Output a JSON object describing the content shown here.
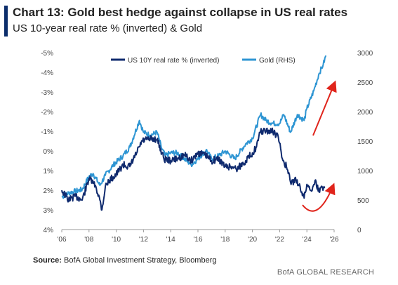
{
  "title": "Chart 13: Gold best hedge against collapse in US real rates",
  "subtitle": "US 10-year real rate % (inverted) & Gold",
  "source_label": "Source:",
  "source_text": " BofA Global Investment Strategy, Bloomberg",
  "footer": "BofA GLOBAL RESEARCH",
  "colors": {
    "accent_bar": "#0c2d6b",
    "real_rate": "#0f2a6e",
    "gold": "#2e95d3",
    "arrow": "#e0241b",
    "axis": "#999999"
  },
  "chart_data": {
    "type": "line",
    "title": "Chart 13: Gold best hedge against collapse in US real rates",
    "subtitle": "US 10-year real rate % (inverted) & Gold",
    "legend_position": "top-center",
    "grid": false,
    "x_ticks": [
      "'06",
      "'08",
      "'10",
      "'12",
      "'14",
      "'16",
      "'18",
      "'20",
      "'22",
      "'24",
      "'26"
    ],
    "y_left": {
      "label": "",
      "inverted": true,
      "range": [
        -5,
        4
      ],
      "ticks": [
        "-5%",
        "-4%",
        "-3%",
        "-2%",
        "-1%",
        "0%",
        "1%",
        "2%",
        "3%",
        "4%"
      ],
      "tick_values": [
        -5,
        -4,
        -3,
        -2,
        -1,
        0,
        1,
        2,
        3,
        4
      ]
    },
    "y_right": {
      "label": "",
      "range": [
        0,
        3000
      ],
      "ticks": [
        "3000",
        "2500",
        "2000",
        "1500",
        "1000",
        "500",
        "0"
      ],
      "tick_values": [
        3000,
        2500,
        2000,
        1500,
        1000,
        500,
        0
      ]
    },
    "series": [
      {
        "name": "US 10Y real rate % (inverted)",
        "axis": "left",
        "x": [
          2006.0,
          2006.5,
          2007.0,
          2007.5,
          2008.0,
          2008.5,
          2008.8,
          2008.95,
          2009.2,
          2009.5,
          2010.0,
          2010.5,
          2011.0,
          2011.5,
          2011.9,
          2012.5,
          2013.0,
          2013.5,
          2014.0,
          2014.5,
          2015.0,
          2015.5,
          2016.0,
          2016.5,
          2017.0,
          2017.5,
          2018.0,
          2018.5,
          2018.9,
          2019.5,
          2020.0,
          2020.3,
          2020.6,
          2021.0,
          2021.5,
          2021.9,
          2022.2,
          2022.5,
          2022.8,
          2023.2,
          2023.5,
          2023.8,
          2024.0,
          2024.3,
          2024.6,
          2024.9,
          2025.1,
          2025.3
        ],
        "y": [
          2.0,
          2.5,
          2.3,
          2.5,
          1.4,
          1.8,
          2.5,
          3.0,
          1.8,
          1.5,
          1.2,
          0.7,
          0.8,
          0.1,
          -0.5,
          -0.6,
          -0.6,
          0.4,
          0.5,
          0.4,
          0.2,
          0.5,
          0.1,
          0.2,
          0.5,
          0.4,
          0.8,
          0.8,
          0.9,
          0.5,
          0.1,
          -0.2,
          -1.0,
          -1.0,
          -1.0,
          -0.7,
          0.4,
          0.8,
          1.6,
          1.5,
          1.8,
          2.4,
          1.7,
          2.0,
          1.5,
          2.1,
          1.8,
          1.9
        ]
      },
      {
        "name": "Gold (RHS)",
        "axis": "right",
        "x": [
          2006.0,
          2006.5,
          2007.0,
          2007.5,
          2008.0,
          2008.3,
          2008.8,
          2009.2,
          2009.8,
          2010.5,
          2011.0,
          2011.7,
          2012.0,
          2012.5,
          2013.0,
          2013.3,
          2013.6,
          2014.0,
          2014.5,
          2015.0,
          2015.5,
          2016.0,
          2016.6,
          2017.0,
          2017.5,
          2018.0,
          2018.7,
          2019.5,
          2020.0,
          2020.6,
          2021.0,
          2021.5,
          2022.0,
          2022.3,
          2022.8,
          2023.3,
          2023.8,
          2024.0,
          2024.5,
          2024.9,
          2025.2,
          2025.4
        ],
        "y": [
          550,
          620,
          650,
          680,
          900,
          950,
          750,
          920,
          1100,
          1250,
          1400,
          1850,
          1650,
          1600,
          1650,
          1400,
          1250,
          1300,
          1300,
          1200,
          1100,
          1200,
          1350,
          1200,
          1250,
          1330,
          1200,
          1450,
          1550,
          1950,
          1850,
          1800,
          1800,
          1950,
          1650,
          1950,
          1850,
          2050,
          2350,
          2650,
          2800,
          2950
        ]
      }
    ],
    "annotations": [
      "red arrow rising along Gold",
      "red curved arrow under real rate"
    ]
  },
  "legend": [
    {
      "label": "US 10Y real rate % (inverted)"
    },
    {
      "label": "Gold (RHS)"
    }
  ]
}
